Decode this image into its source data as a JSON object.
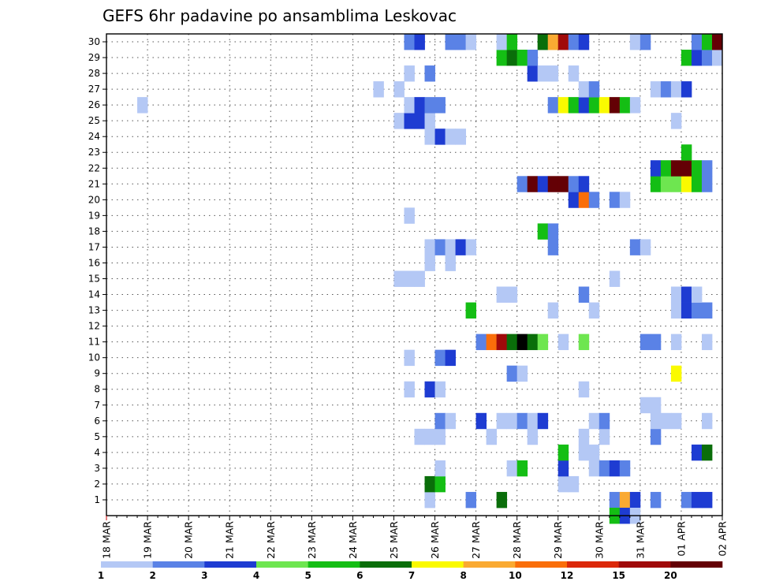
{
  "chart_data": {
    "type": "heatmap",
    "title": "GEFS 6hr padavine po ansamblima Leskovac",
    "xlabel": "",
    "ylabel": "",
    "x_ticks": [
      "18 MAR",
      "19 MAR",
      "20 MAR",
      "21 MAR",
      "22 MAR",
      "23 MAR",
      "24 MAR",
      "25 MAR",
      "26 MAR",
      "27 MAR",
      "28 MAR",
      "29 MAR",
      "30 MAR",
      "31 MAR",
      "01 APR",
      "02 APR"
    ],
    "y_ticks": [
      "1",
      "2",
      "3",
      "4",
      "5",
      "6",
      "7",
      "8",
      "9",
      "10",
      "11",
      "12",
      "13",
      "14",
      "15",
      "16",
      "17",
      "18",
      "19",
      "20",
      "21",
      "22",
      "23",
      "24",
      "25",
      "26",
      "27",
      "28",
      "29",
      "30"
    ],
    "steps_per_day": 4,
    "total_steps": 60,
    "ylim": [
      0,
      30
    ],
    "legend": {
      "labels": [
        "1",
        "2",
        "3",
        "4",
        "5",
        "6",
        "7",
        "8",
        "10",
        "12",
        "15",
        "20"
      ],
      "colors": [
        "#b4c8f5",
        "#5a82e6",
        "#1e3cd2",
        "#6ee650",
        "#14be14",
        "#0a6e0a",
        "#fafa00",
        "#faaa32",
        "#fa6e0a",
        "#dc280a",
        "#a00a0a",
        "#640005"
      ]
    },
    "cells": [
      {
        "m": 1,
        "t": [
          [
            31,
            1
          ],
          [
            35,
            2
          ],
          [
            38,
            6
          ],
          [
            49,
            2
          ],
          [
            50,
            8
          ],
          [
            51,
            3
          ],
          [
            53,
            2
          ],
          [
            56,
            2
          ],
          [
            57,
            3
          ],
          [
            58,
            3
          ]
        ]
      },
      {
        "m": 2,
        "t": [
          [
            31,
            6
          ],
          [
            32,
            5
          ],
          [
            44,
            1
          ],
          [
            45,
            1
          ]
        ]
      },
      {
        "m": 3,
        "t": [
          [
            32,
            1
          ],
          [
            39,
            1
          ],
          [
            40,
            5
          ],
          [
            44,
            3
          ],
          [
            47,
            1
          ],
          [
            48,
            2
          ],
          [
            49,
            3
          ],
          [
            50,
            2
          ]
        ]
      },
      {
        "m": 4,
        "t": [
          [
            44,
            5
          ],
          [
            46,
            1
          ],
          [
            47,
            1
          ],
          [
            57,
            3
          ],
          [
            58,
            6
          ]
        ]
      },
      {
        "m": 5,
        "t": [
          [
            30,
            1
          ],
          [
            31,
            1
          ],
          [
            32,
            1
          ],
          [
            37,
            1
          ],
          [
            41,
            1
          ],
          [
            46,
            1
          ],
          [
            48,
            1
          ],
          [
            53,
            2
          ]
        ]
      },
      {
        "m": 6,
        "t": [
          [
            32,
            2
          ],
          [
            33,
            1
          ],
          [
            36,
            3
          ],
          [
            38,
            1
          ],
          [
            39,
            1
          ],
          [
            40,
            2
          ],
          [
            41,
            1
          ],
          [
            42,
            3
          ],
          [
            47,
            1
          ],
          [
            48,
            2
          ],
          [
            53,
            1
          ],
          [
            54,
            1
          ],
          [
            55,
            1
          ],
          [
            58,
            1
          ]
        ]
      },
      {
        "m": 7,
        "t": [
          [
            52,
            1
          ],
          [
            53,
            1
          ]
        ]
      },
      {
        "m": 8,
        "t": [
          [
            29,
            1
          ],
          [
            31,
            3
          ],
          [
            32,
            1
          ],
          [
            46,
            1
          ]
        ]
      },
      {
        "m": 9,
        "t": [
          [
            39,
            2
          ],
          [
            40,
            1
          ],
          [
            55,
            7
          ]
        ]
      },
      {
        "m": 10,
        "t": [
          [
            29,
            1
          ],
          [
            32,
            2
          ],
          [
            33,
            3
          ]
        ]
      },
      {
        "m": 11,
        "t": [
          [
            36,
            2
          ],
          [
            37,
            9
          ],
          [
            38,
            11
          ],
          [
            39,
            6
          ],
          [
            40,
            14
          ],
          [
            41,
            6
          ],
          [
            42,
            4
          ],
          [
            44,
            1
          ],
          [
            46,
            4
          ],
          [
            52,
            2
          ],
          [
            53,
            2
          ],
          [
            55,
            1
          ],
          [
            58,
            1
          ]
        ]
      },
      {
        "m": 13,
        "t": [
          [
            35,
            5
          ],
          [
            43,
            1
          ],
          [
            47,
            1
          ],
          [
            55,
            1
          ],
          [
            56,
            3
          ],
          [
            57,
            2
          ],
          [
            58,
            2
          ]
        ]
      },
      {
        "m": 14,
        "t": [
          [
            38,
            1
          ],
          [
            39,
            1
          ],
          [
            46,
            2
          ],
          [
            55,
            1
          ],
          [
            56,
            3
          ],
          [
            57,
            1
          ]
        ]
      },
      {
        "m": 15,
        "t": [
          [
            28,
            1
          ],
          [
            29,
            1
          ],
          [
            30,
            1
          ],
          [
            49,
            1
          ]
        ]
      },
      {
        "m": 16,
        "t": [
          [
            31,
            1
          ],
          [
            33,
            1
          ]
        ]
      },
      {
        "m": 17,
        "t": [
          [
            31,
            1
          ],
          [
            32,
            2
          ],
          [
            33,
            1
          ],
          [
            34,
            3
          ],
          [
            35,
            1
          ],
          [
            43,
            2
          ],
          [
            51,
            2
          ],
          [
            52,
            1
          ]
        ]
      },
      {
        "m": 18,
        "t": [
          [
            42,
            5
          ],
          [
            43,
            2
          ]
        ]
      },
      {
        "m": 19,
        "t": [
          [
            29,
            1
          ]
        ]
      },
      {
        "m": 20,
        "t": [
          [
            45,
            3
          ],
          [
            46,
            9
          ],
          [
            47,
            2
          ],
          [
            49,
            2
          ],
          [
            50,
            1
          ]
        ]
      },
      {
        "m": 21,
        "t": [
          [
            40,
            2
          ],
          [
            41,
            12
          ],
          [
            42,
            3
          ],
          [
            43,
            12
          ],
          [
            44,
            12
          ],
          [
            45,
            2
          ],
          [
            46,
            3
          ],
          [
            53,
            5
          ],
          [
            54,
            4
          ],
          [
            55,
            4
          ],
          [
            56,
            7
          ],
          [
            57,
            5
          ],
          [
            58,
            2
          ]
        ]
      },
      {
        "m": 22,
        "t": [
          [
            53,
            3
          ],
          [
            54,
            5
          ],
          [
            55,
            12
          ],
          [
            56,
            12
          ],
          [
            57,
            5
          ],
          [
            58,
            2
          ]
        ]
      },
      {
        "m": 23,
        "t": [
          [
            56,
            5
          ]
        ]
      },
      {
        "m": 24,
        "t": [
          [
            31,
            1
          ],
          [
            32,
            3
          ],
          [
            33,
            1
          ],
          [
            34,
            1
          ]
        ]
      },
      {
        "m": 25,
        "t": [
          [
            28,
            1
          ],
          [
            29,
            3
          ],
          [
            30,
            3
          ],
          [
            31,
            1
          ],
          [
            55,
            1
          ]
        ]
      },
      {
        "m": 26,
        "t": [
          [
            3,
            1
          ],
          [
            29,
            1
          ],
          [
            30,
            3
          ],
          [
            31,
            2
          ],
          [
            32,
            2
          ],
          [
            43,
            2
          ],
          [
            44,
            7
          ],
          [
            45,
            5
          ],
          [
            46,
            3
          ],
          [
            47,
            5
          ],
          [
            48,
            7
          ],
          [
            49,
            12
          ],
          [
            50,
            5
          ],
          [
            51,
            1
          ]
        ]
      },
      {
        "m": 27,
        "t": [
          [
            26,
            1
          ],
          [
            28,
            1
          ],
          [
            46,
            1
          ],
          [
            47,
            2
          ],
          [
            53,
            1
          ],
          [
            54,
            2
          ],
          [
            55,
            1
          ],
          [
            56,
            3
          ]
        ]
      },
      {
        "m": 28,
        "t": [
          [
            29,
            1
          ],
          [
            31,
            2
          ],
          [
            41,
            3
          ],
          [
            42,
            1
          ],
          [
            43,
            1
          ],
          [
            45,
            1
          ]
        ]
      },
      {
        "m": 29,
        "t": [
          [
            38,
            5
          ],
          [
            39,
            6
          ],
          [
            40,
            5
          ],
          [
            41,
            2
          ],
          [
            56,
            5
          ],
          [
            57,
            3
          ],
          [
            58,
            2
          ],
          [
            59,
            1
          ]
        ]
      },
      {
        "m": 30,
        "t": [
          [
            29,
            2
          ],
          [
            30,
            3
          ],
          [
            33,
            2
          ],
          [
            34,
            2
          ],
          [
            35,
            1
          ],
          [
            38,
            1
          ],
          [
            39,
            5
          ],
          [
            42,
            6
          ],
          [
            43,
            8
          ],
          [
            44,
            11
          ],
          [
            45,
            2
          ],
          [
            46,
            3
          ],
          [
            51,
            1
          ],
          [
            52,
            2
          ],
          [
            57,
            2
          ],
          [
            58,
            5
          ],
          [
            59,
            12
          ]
        ]
      },
      {
        "m": 0,
        "t": [
          [
            49,
            5
          ],
          [
            50,
            3
          ],
          [
            51,
            1
          ]
        ]
      }
    ]
  }
}
